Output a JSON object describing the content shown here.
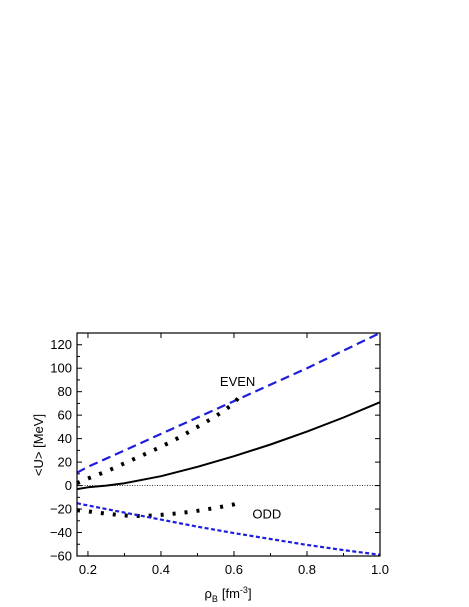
{
  "chart_data": {
    "type": "line",
    "title": "",
    "xlabel": {
      "main": "ρ",
      "sub": "B",
      "unit_open": "[fm",
      "unit_sup": "-3",
      "unit_close": "]"
    },
    "ylabel": "<U> [MeV]",
    "xlim": [
      0.17,
      1.0
    ],
    "ylim": [
      -60,
      130
    ],
    "x_ticks": [
      "0.2",
      "0.4",
      "0.6",
      "0.8",
      "1.0"
    ],
    "y_ticks": [
      "120",
      "100",
      "80",
      "60",
      "40",
      "20",
      "0",
      "−20",
      "−40",
      "−60"
    ],
    "grid": false,
    "annotations": [
      {
        "text": "EVEN",
        "x": 0.61,
        "y": 85
      },
      {
        "text": "ODD",
        "x": 0.69,
        "y": -28
      }
    ],
    "series": [
      {
        "style": "dashed",
        "color": "#1e1edc",
        "x": [
          0.17,
          0.2,
          0.3,
          0.4,
          0.5,
          0.6,
          0.7,
          0.8,
          0.9,
          1.0
        ],
        "y": [
          11,
          16,
          30,
          44,
          58,
          72,
          86,
          100,
          115,
          130
        ]
      },
      {
        "style": "solid",
        "color": "#000000",
        "x": [
          0.17,
          0.2,
          0.25,
          0.3,
          0.4,
          0.5,
          0.6,
          0.7,
          0.8,
          0.9,
          1.0
        ],
        "y": [
          -3,
          -1.5,
          0,
          2,
          8,
          16,
          25,
          35,
          46,
          58,
          71
        ]
      },
      {
        "style": "dotted",
        "color": "#000000",
        "x": [
          0.17,
          0.2,
          0.25,
          0.3,
          0.35,
          0.4,
          0.45,
          0.5,
          0.55,
          0.6,
          0.62
        ],
        "y": [
          2,
          6,
          12,
          19,
          26,
          33,
          41,
          50,
          59,
          70,
          78
        ]
      },
      {
        "style": "dotted",
        "color": "#000000",
        "x": [
          0.17,
          0.2,
          0.25,
          0.3,
          0.35,
          0.4,
          0.45,
          0.5,
          0.55,
          0.6,
          0.62
        ],
        "y": [
          -21,
          -22,
          -24,
          -25.5,
          -26,
          -25,
          -23.5,
          -21.5,
          -19,
          -16,
          -14
        ]
      },
      {
        "style": "densedash",
        "color": "#1e1edc",
        "x": [
          0.17,
          0.2,
          0.3,
          0.4,
          0.5,
          0.6,
          0.7,
          0.8,
          0.9,
          1.0
        ],
        "y": [
          -15,
          -17,
          -23,
          -29,
          -35,
          -40.5,
          -45.5,
          -50.5,
          -55,
          -59
        ]
      },
      {
        "style": "finedot",
        "color": "#000000",
        "x": [
          0.17,
          1.0
        ],
        "y": [
          0,
          0
        ]
      }
    ]
  }
}
